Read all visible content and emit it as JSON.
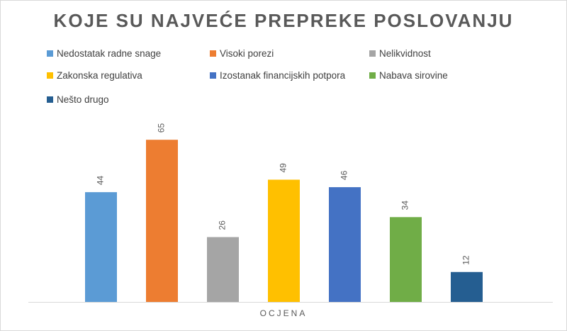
{
  "chart_data": {
    "type": "bar",
    "title": "KOJE SU NAJVEĆE PREPREKE POSLOVANJU",
    "xlabel": "OCJENA",
    "ylabel": "",
    "categories": [
      "OCJENA"
    ],
    "ylim": [
      0,
      70
    ],
    "grid": false,
    "legend_position": "top",
    "series": [
      {
        "name": "Nedostatak radne snage",
        "values": [
          44
        ],
        "color": "#5b9bd5"
      },
      {
        "name": "Visoki porezi",
        "values": [
          65
        ],
        "color": "#ed7d31"
      },
      {
        "name": "Nelikvidnost",
        "values": [
          26
        ],
        "color": "#a5a5a5"
      },
      {
        "name": "Zakonska regulativa",
        "values": [
          49
        ],
        "color": "#ffc000"
      },
      {
        "name": "Izostanak financijskih potpora",
        "values": [
          46
        ],
        "color": "#4472c4"
      },
      {
        "name": "Nabava sirovine",
        "values": [
          34
        ],
        "color": "#70ad47"
      },
      {
        "name": "Nešto drugo",
        "values": [
          12
        ],
        "color": "#255e91"
      }
    ]
  }
}
